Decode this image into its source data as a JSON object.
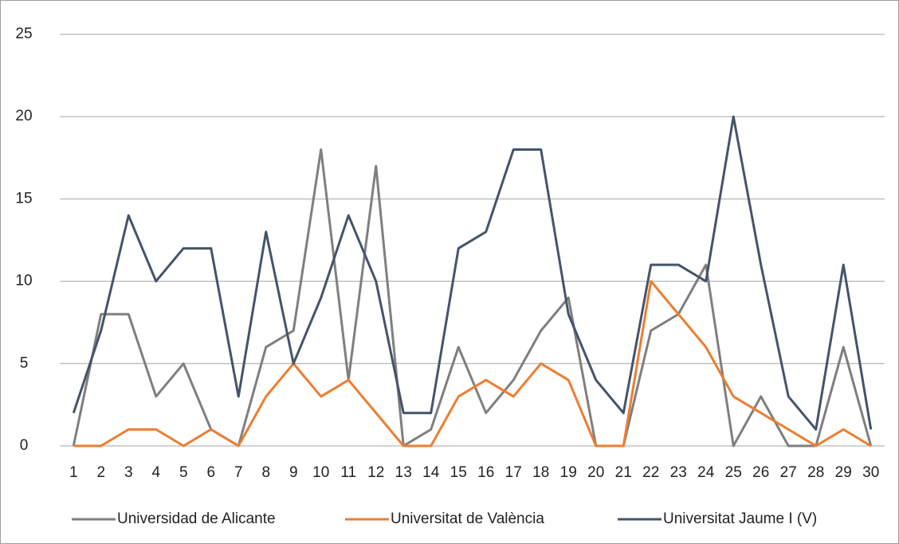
{
  "chart_data": {
    "type": "line",
    "categories": [
      "1",
      "2",
      "3",
      "4",
      "5",
      "6",
      "7",
      "8",
      "9",
      "10",
      "11",
      "12",
      "13",
      "14",
      "15",
      "16",
      "17",
      "18",
      "19",
      "20",
      "21",
      "22",
      "23",
      "24",
      "25",
      "26",
      "27",
      "28",
      "29",
      "30"
    ],
    "series": [
      {
        "name": "Universidad de Alicante",
        "color": "#7f7f7f",
        "values": [
          0,
          8,
          8,
          3,
          5,
          1,
          0,
          6,
          7,
          18,
          4,
          17,
          0,
          1,
          6,
          2,
          4,
          7,
          9,
          0,
          0,
          7,
          8,
          11,
          0,
          3,
          0,
          0,
          6,
          0
        ]
      },
      {
        "name": "Universitat de València",
        "color": "#ed7d31",
        "values": [
          0,
          0,
          1,
          1,
          0,
          1,
          0,
          3,
          5,
          3,
          4,
          2,
          0,
          0,
          3,
          4,
          3,
          5,
          4,
          0,
          0,
          10,
          8,
          6,
          3,
          2,
          1,
          0,
          1,
          0
        ]
      },
      {
        "name": "Universitat Jaume I (V)",
        "color": "#44546a",
        "values": [
          2,
          7,
          14,
          10,
          12,
          12,
          3,
          13,
          5,
          9,
          14,
          10,
          2,
          2,
          12,
          13,
          18,
          18,
          8,
          4,
          2,
          11,
          11,
          10,
          20,
          11,
          3,
          1,
          11,
          1
        ]
      }
    ],
    "ylim": [
      0,
      25
    ],
    "yticks": [
      0,
      5,
      10,
      15,
      20,
      25
    ],
    "grid": true,
    "legend": "bottom"
  }
}
